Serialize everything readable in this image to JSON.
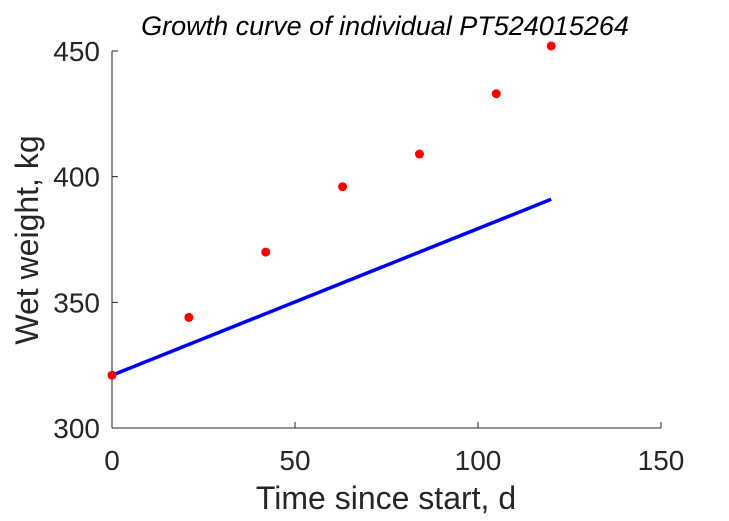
{
  "chart_data": {
    "type": "scatter",
    "title": "Growth curve of individual PT524015264",
    "xlabel": "Time since start, d",
    "ylabel": "Wet weight, kg",
    "xlim": [
      0,
      150
    ],
    "ylim": [
      300,
      450
    ],
    "x_ticks": [
      "0",
      "50",
      "100",
      "150"
    ],
    "y_ticks": [
      "300",
      "350",
      "400",
      "450"
    ],
    "grid": false,
    "series": [
      {
        "marker": "dot",
        "color": "#ff0000",
        "x": [
          0,
          21,
          42,
          63,
          84,
          105,
          120
        ],
        "y": [
          321,
          344,
          370,
          396,
          409,
          433,
          452
        ]
      },
      {
        "marker": "line",
        "color": "#0000ee",
        "x": [
          0,
          120
        ],
        "y": [
          321,
          391
        ]
      }
    ]
  }
}
